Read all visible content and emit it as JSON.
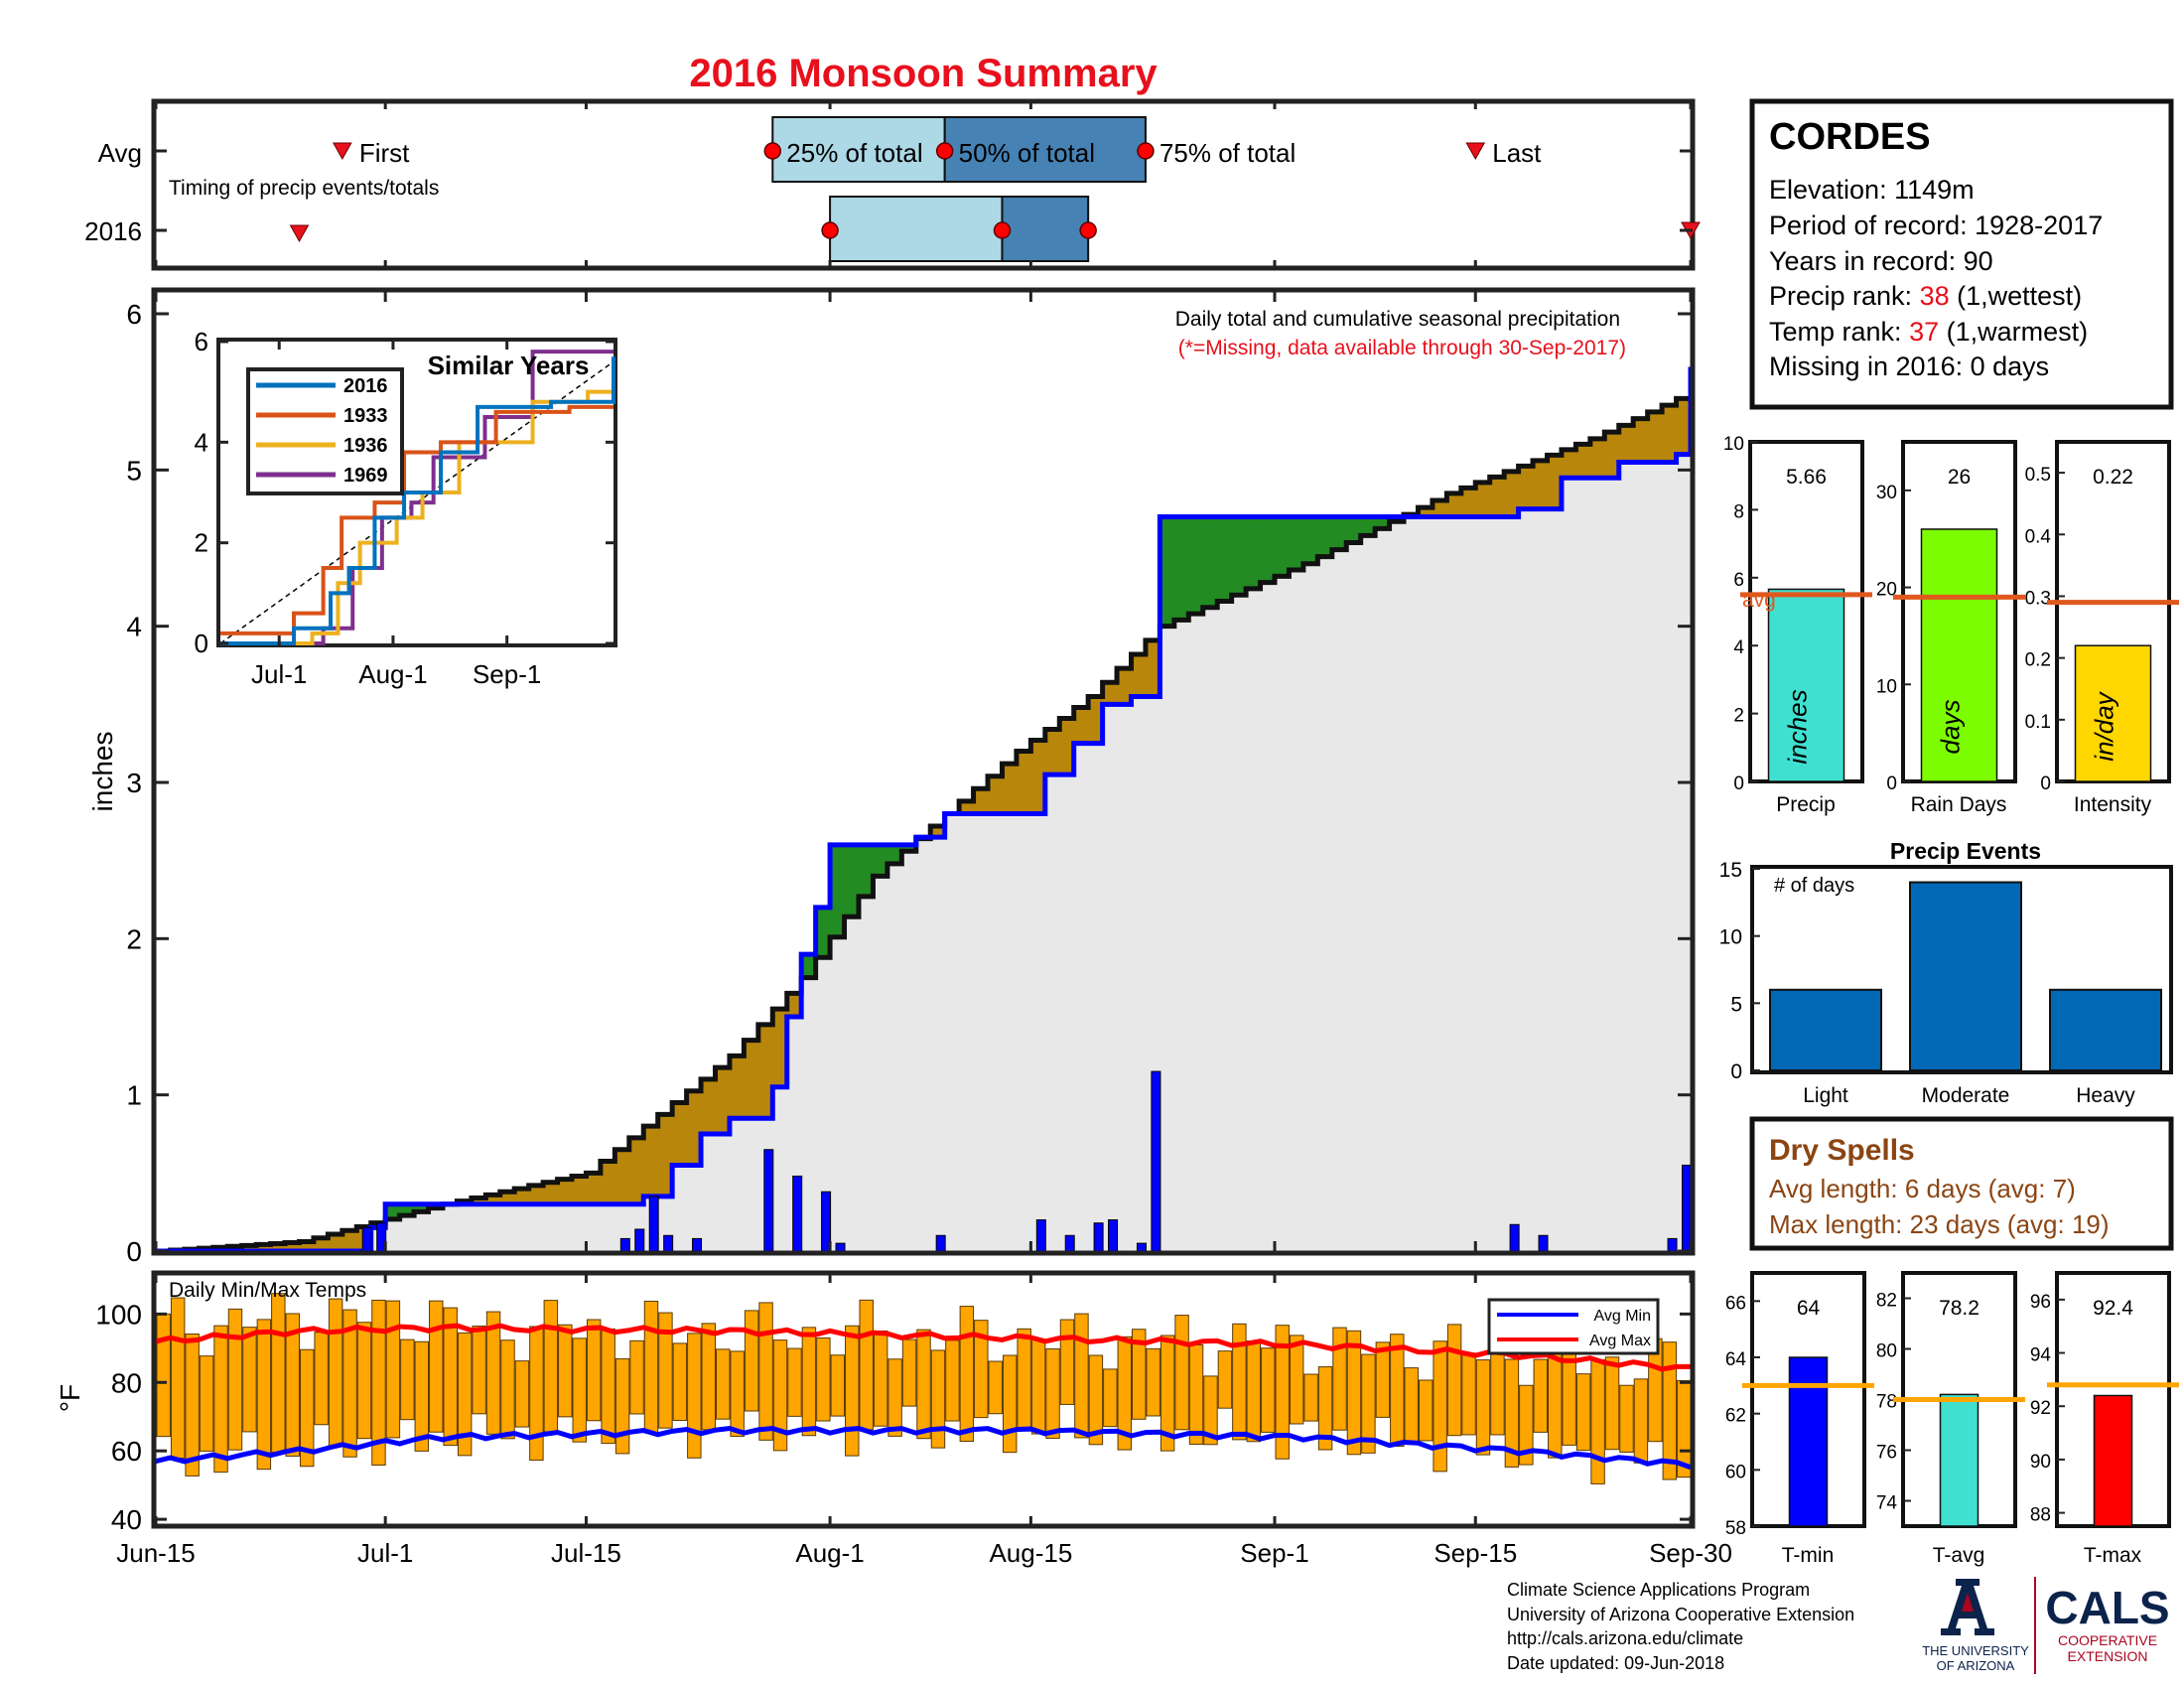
{
  "title": "2016 Monsoon Summary",
  "colors": {
    "title_red": "#e8101c",
    "brown_fill": "#b8860b",
    "green_fill": "#228b22",
    "light_gray": "#e8e8e8",
    "bar_blue": "#0000ff",
    "light_blue_box": "#add8e6",
    "steel_blue_box": "#4682b4",
    "orange_temp": "#ffa500",
    "event_blue": "#0068b5",
    "rank_red": "#e8101c",
    "dry_brown": "#8b4513",
    "ua_navy": "#0c234b",
    "ua_red": "#ab0520"
  },
  "timing": {
    "row_labels": [
      "Avg",
      "2016"
    ],
    "note": "Timing of precip events/totals",
    "avg": {
      "first": "First",
      "q25": "25% of total",
      "q50": "50% of total",
      "q75": "75% of total",
      "last": "Last"
    },
    "avg_days": {
      "first": 13,
      "q25": 43,
      "q50": 55,
      "q75": 69,
      "last": 92
    },
    "y2016_days": {
      "first": 10,
      "q25": 47,
      "q50": 59,
      "q75": 65,
      "last": 107
    }
  },
  "station": {
    "name": "CORDES",
    "elevation": "Elevation: 1149m",
    "period": "Period of record: 1928-2017",
    "years": "Years in record: 90",
    "precip_rank_label": "Precip rank: ",
    "precip_rank": "38",
    "precip_rank_note": " (1,wettest)",
    "temp_rank_label": "Temp rank: ",
    "temp_rank": "37",
    "temp_rank_note": " (1,warmest)",
    "missing": "Missing in 2016: 0 days"
  },
  "main_chart": {
    "annotation1": "Daily total and cumulative seasonal precipitation",
    "annotation2": "(*=Missing, data available through 30-Sep-2017)",
    "ylabel": "inches",
    "yticks": [
      "0",
      "1",
      "2",
      "3",
      "4",
      "5",
      "6"
    ],
    "xticks": [
      "Jun-15",
      "Jul-1",
      "Jul-15",
      "Aug-1",
      "Aug-15",
      "Sep-1",
      "Sep-15",
      "Sep-30"
    ]
  },
  "inset": {
    "title": "Similar Years",
    "legend": [
      "2016",
      "1933",
      "1936",
      "1969"
    ],
    "legend_colors": [
      "#0072bd",
      "#d95319",
      "#edb120",
      "#7e2f8e"
    ],
    "yticks": [
      "0",
      "2",
      "4",
      "6"
    ],
    "xticks": [
      "Jul-1",
      "Aug-1",
      "Sep-1"
    ]
  },
  "stat_bars": [
    {
      "name": "Precip",
      "value": "5.66",
      "unit": "inches",
      "avg_label": "avg",
      "yticks": [
        "0",
        "2",
        "4",
        "6",
        "8",
        "10"
      ]
    },
    {
      "name": "Rain Days",
      "value": "26",
      "unit": "days",
      "yticks": [
        "0",
        "10",
        "20",
        "30"
      ]
    },
    {
      "name": "Intensity",
      "value": "0.22",
      "unit": "in/day",
      "yticks": [
        "0",
        "0.1",
        "0.2",
        "0.3",
        "0.4",
        "0.5"
      ]
    }
  ],
  "precip_events": {
    "title": "Precip Events",
    "note": "# of days",
    "yticks": [
      "0",
      "5",
      "10",
      "15"
    ]
  },
  "dry_spells": {
    "title": "Dry Spells",
    "avg_length": "Avg length: 6 days (avg: 7)",
    "max_length": "Max length: 23 days (avg: 19)"
  },
  "temps": {
    "label": "Daily Min/Max Temps",
    "ylabel": "°F",
    "yticks": [
      "40",
      "60",
      "80",
      "100"
    ],
    "legend_min": "Avg Min",
    "legend_max": "Avg Max"
  },
  "temp_stats": [
    {
      "name": "T-min",
      "value": "64",
      "yticks": [
        "58",
        "60",
        "62",
        "64",
        "66"
      ]
    },
    {
      "name": "T-avg",
      "value": "78.2",
      "yticks": [
        "74",
        "76",
        "78",
        "80",
        "82"
      ]
    },
    {
      "name": "T-max",
      "value": "92.4",
      "yticks": [
        "88",
        "90",
        "92",
        "94",
        "96"
      ]
    }
  ],
  "footer": {
    "line1": "Climate Science Applications Program",
    "line2": "University of Arizona Cooperative Extension",
    "line3": "http://cals.arizona.edu/climate",
    "line4": " Date updated: 09-Jun-2018",
    "ua_line1": "THE UNIVERSITY",
    "ua_line2": "OF ARIZONA",
    "cals": "CALS",
    "coop1": "COOPERATIVE",
    "coop2": "EXTENSION"
  },
  "chart_data": [
    {
      "type": "bar",
      "title": "Daily total and cumulative seasonal precipitation",
      "ylabel": "inches",
      "ylim": [
        0,
        6
      ],
      "x_range": [
        "Jun-15",
        "Sep-30"
      ],
      "series": [
        {
          "name": "2016",
          "type": "line",
          "points": [
            [
              0,
              0
            ],
            [
              15,
              0.15
            ],
            [
              16,
              0.3
            ],
            [
              31,
              0.3
            ],
            [
              34,
              0.35
            ],
            [
              36,
              0.55
            ],
            [
              38,
              0.75
            ],
            [
              40,
              0.85
            ],
            [
              43,
              1.05
            ],
            [
              44,
              1.5
            ],
            [
              45,
              1.9
            ],
            [
              46,
              2.2
            ],
            [
              47,
              2.6
            ],
            [
              53,
              2.65
            ],
            [
              55,
              2.8
            ],
            [
              62,
              3.05
            ],
            [
              64,
              3.25
            ],
            [
              66,
              3.5
            ],
            [
              68,
              3.55
            ],
            [
              70,
              4.7
            ],
            [
              85,
              4.7
            ],
            [
              95,
              4.75
            ],
            [
              98,
              4.95
            ],
            [
              102,
              5.05
            ],
            [
              106,
              5.1
            ],
            [
              107,
              5.66
            ]
          ]
        },
        {
          "type": "line",
          "points": [
            [
              0,
              0
            ],
            [
              10,
              0.06
            ],
            [
              15,
              0.18
            ],
            [
              20,
              0.3
            ],
            [
              30,
              0.5
            ],
            [
              40,
              1.25
            ],
            [
              45,
              1.75
            ],
            [
              50,
              2.4
            ],
            [
              55,
              2.8
            ],
            [
              60,
              3.2
            ],
            [
              65,
              3.55
            ],
            [
              70,
              4.0
            ],
            [
              80,
              4.4
            ],
            [
              90,
              4.85
            ],
            [
              100,
              5.2
            ],
            [
              107,
              5.5
            ]
          ]
        }
      ],
      "daily_bars": [
        [
          15,
          0.15
        ],
        [
          16,
          0.18
        ],
        [
          33,
          0.08
        ],
        [
          34,
          0.14
        ],
        [
          35,
          0.35
        ],
        [
          36,
          0.1
        ],
        [
          38,
          0.08
        ],
        [
          43,
          0.65
        ],
        [
          45,
          0.48
        ],
        [
          47,
          0.38
        ],
        [
          48,
          0.05
        ],
        [
          55,
          0.1
        ],
        [
          62,
          0.2
        ],
        [
          64,
          0.1
        ],
        [
          66,
          0.18
        ],
        [
          67,
          0.2
        ],
        [
          69,
          0.05
        ],
        [
          70,
          1.15
        ],
        [
          95,
          0.17
        ],
        [
          97,
          0.1
        ],
        [
          106,
          0.08
        ],
        [
          107,
          0.55
        ]
      ]
    },
    {
      "type": "line",
      "title": "Similar Years",
      "ylim": [
        0,
        6
      ],
      "xticks": [
        "Jul-1",
        "Aug-1",
        "Sep-1"
      ],
      "series": [
        {
          "name": "2016",
          "points": [
            [
              0,
              0
            ],
            [
              20,
              0.3
            ],
            [
              30,
              1.0
            ],
            [
              35,
              1.5
            ],
            [
              42,
              2.5
            ],
            [
              50,
              3.0
            ],
            [
              60,
              3.8
            ],
            [
              70,
              4.7
            ],
            [
              90,
              4.8
            ],
            [
              107,
              5.7
            ]
          ]
        },
        {
          "name": "1933",
          "points": [
            [
              0,
              0.2
            ],
            [
              20,
              0.6
            ],
            [
              28,
              1.5
            ],
            [
              33,
              2.5
            ],
            [
              42,
              2.8
            ],
            [
              50,
              3.8
            ],
            [
              60,
              4.0
            ],
            [
              75,
              4.6
            ],
            [
              95,
              4.7
            ],
            [
              107,
              4.7
            ]
          ]
        },
        {
          "name": "1936",
          "points": [
            [
              0,
              0
            ],
            [
              25,
              0.2
            ],
            [
              32,
              1.2
            ],
            [
              38,
              2.0
            ],
            [
              48,
              2.5
            ],
            [
              55,
              3.0
            ],
            [
              65,
              4.0
            ],
            [
              85,
              4.8
            ],
            [
              100,
              5.0
            ],
            [
              107,
              5.0
            ]
          ]
        },
        {
          "name": "1969",
          "points": [
            [
              0,
              0
            ],
            [
              28,
              0.3
            ],
            [
              36,
              1.5
            ],
            [
              44,
              2.5
            ],
            [
              52,
              2.8
            ],
            [
              58,
              3.7
            ],
            [
              72,
              4.5
            ],
            [
              85,
              5.8
            ],
            [
              107,
              5.8
            ]
          ]
        }
      ]
    },
    {
      "type": "bar",
      "categories": [
        "Precip",
        "Rain Days",
        "Intensity"
      ],
      "values": [
        5.66,
        26,
        0.22
      ],
      "averages": [
        5.5,
        19,
        0.29
      ],
      "ylims": [
        [
          0,
          10
        ],
        [
          0,
          35
        ],
        [
          0,
          0.55
        ]
      ]
    },
    {
      "type": "bar",
      "title": "Precip Events",
      "categories": [
        "Light",
        "Moderate",
        "Heavy"
      ],
      "values": [
        6,
        14,
        6
      ],
      "ylim": [
        0,
        15
      ]
    },
    {
      "type": "bar",
      "title": "Daily Min/Max Temps",
      "ylabel": "°F",
      "ylim": [
        40,
        110
      ],
      "series": [
        {
          "name": "Avg Max",
          "type": "line",
          "points": [
            [
              0,
              92
            ],
            [
              10,
              95
            ],
            [
              20,
              96
            ],
            [
              40,
              95
            ],
            [
              60,
              93
            ],
            [
              80,
              91
            ],
            [
              95,
              88
            ],
            [
              107,
              84
            ]
          ]
        },
        {
          "name": "Avg Min",
          "type": "line",
          "points": [
            [
              0,
              57
            ],
            [
              10,
              60
            ],
            [
              20,
              64
            ],
            [
              40,
              66
            ],
            [
              60,
              66
            ],
            [
              80,
              64
            ],
            [
              95,
              60
            ],
            [
              107,
              56
            ]
          ]
        }
      ]
    },
    {
      "type": "bar",
      "categories": [
        "T-min",
        "T-avg",
        "T-max"
      ],
      "values": [
        64,
        78.2,
        92.4
      ],
      "averages": [
        63,
        78,
        92.8
      ],
      "ylims": [
        [
          58,
          67
        ],
        [
          73,
          83
        ],
        [
          87.5,
          97
        ]
      ]
    }
  ]
}
